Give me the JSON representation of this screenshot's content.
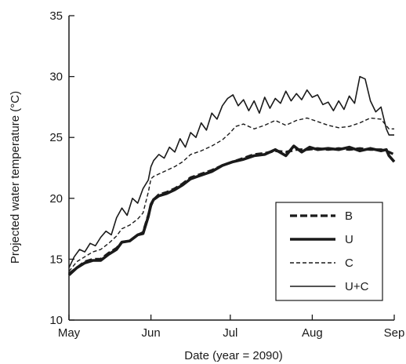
{
  "chart_data": {
    "type": "line",
    "title": "",
    "xlabel": "Date (year = 2090)",
    "ylabel": "Projected water temperature (°C)",
    "ylim": [
      10,
      35
    ],
    "yticks": [
      10,
      15,
      20,
      25,
      30,
      35
    ],
    "xlim": [
      0,
      123
    ],
    "xticks": [
      {
        "label": "May",
        "day": 0
      },
      {
        "label": "Jun",
        "day": 31
      },
      {
        "label": "Jul",
        "day": 61
      },
      {
        "label": "Aug",
        "day": 92
      },
      {
        "label": "Sep",
        "day": 123
      }
    ],
    "grid": false,
    "legend_position": "lower-right",
    "series": [
      {
        "name": "B",
        "style": "dashed-thick",
        "points": [
          [
            0,
            13.8
          ],
          [
            3,
            14.3
          ],
          [
            6,
            14.8
          ],
          [
            9,
            15.0
          ],
          [
            12,
            15.0
          ],
          [
            15,
            15.5
          ],
          [
            18,
            15.9
          ],
          [
            20,
            16.4
          ],
          [
            23,
            16.5
          ],
          [
            26,
            17.0
          ],
          [
            28,
            17.2
          ],
          [
            30,
            18.6
          ],
          [
            31,
            19.4
          ],
          [
            32,
            19.9
          ],
          [
            34,
            20.3
          ],
          [
            37,
            20.5
          ],
          [
            40,
            20.8
          ],
          [
            43,
            21.2
          ],
          [
            46,
            21.7
          ],
          [
            50,
            22.0
          ],
          [
            54,
            22.3
          ],
          [
            58,
            22.7
          ],
          [
            62,
            23.0
          ],
          [
            66,
            23.3
          ],
          [
            70,
            23.6
          ],
          [
            74,
            23.7
          ],
          [
            78,
            23.9
          ],
          [
            82,
            23.8
          ],
          [
            86,
            24.0
          ],
          [
            90,
            24.0
          ],
          [
            94,
            24.1
          ],
          [
            98,
            24.0
          ],
          [
            102,
            24.1
          ],
          [
            106,
            24.0
          ],
          [
            110,
            24.1
          ],
          [
            114,
            24.0
          ],
          [
            118,
            24.0
          ],
          [
            121,
            23.8
          ],
          [
            123,
            23.6
          ]
        ]
      },
      {
        "name": "U",
        "style": "solid-thick",
        "points": [
          [
            0,
            13.7
          ],
          [
            3,
            14.3
          ],
          [
            6,
            14.7
          ],
          [
            9,
            14.9
          ],
          [
            12,
            14.9
          ],
          [
            15,
            15.4
          ],
          [
            18,
            15.8
          ],
          [
            20,
            16.4
          ],
          [
            23,
            16.5
          ],
          [
            26,
            17.0
          ],
          [
            28,
            17.1
          ],
          [
            30,
            18.5
          ],
          [
            31,
            19.5
          ],
          [
            32,
            19.9
          ],
          [
            34,
            20.2
          ],
          [
            37,
            20.4
          ],
          [
            40,
            20.7
          ],
          [
            43,
            21.1
          ],
          [
            46,
            21.6
          ],
          [
            50,
            21.9
          ],
          [
            54,
            22.2
          ],
          [
            58,
            22.7
          ],
          [
            62,
            23.0
          ],
          [
            66,
            23.2
          ],
          [
            70,
            23.5
          ],
          [
            74,
            23.6
          ],
          [
            78,
            24.0
          ],
          [
            82,
            23.5
          ],
          [
            85,
            24.3
          ],
          [
            88,
            23.8
          ],
          [
            91,
            24.2
          ],
          [
            94,
            24.0
          ],
          [
            98,
            24.1
          ],
          [
            102,
            24.0
          ],
          [
            106,
            24.2
          ],
          [
            110,
            23.9
          ],
          [
            114,
            24.1
          ],
          [
            118,
            23.9
          ],
          [
            120,
            24.0
          ],
          [
            121,
            23.5
          ],
          [
            123,
            23.0
          ]
        ]
      },
      {
        "name": "C",
        "style": "dashed-thin",
        "points": [
          [
            0,
            14.0
          ],
          [
            3,
            14.8
          ],
          [
            6,
            15.2
          ],
          [
            9,
            15.6
          ],
          [
            12,
            15.8
          ],
          [
            15,
            16.3
          ],
          [
            18,
            16.9
          ],
          [
            20,
            17.5
          ],
          [
            23,
            17.8
          ],
          [
            26,
            18.3
          ],
          [
            28,
            18.8
          ],
          [
            30,
            20.5
          ],
          [
            31,
            21.6
          ],
          [
            32,
            21.8
          ],
          [
            34,
            22.0
          ],
          [
            37,
            22.3
          ],
          [
            40,
            22.6
          ],
          [
            43,
            23.0
          ],
          [
            46,
            23.6
          ],
          [
            50,
            23.9
          ],
          [
            54,
            24.3
          ],
          [
            58,
            24.8
          ],
          [
            61,
            25.4
          ],
          [
            63,
            25.9
          ],
          [
            66,
            26.1
          ],
          [
            70,
            25.7
          ],
          [
            74,
            26.0
          ],
          [
            78,
            26.4
          ],
          [
            82,
            26.0
          ],
          [
            86,
            26.4
          ],
          [
            90,
            26.6
          ],
          [
            94,
            26.3
          ],
          [
            98,
            26.0
          ],
          [
            102,
            25.8
          ],
          [
            106,
            25.9
          ],
          [
            110,
            26.2
          ],
          [
            114,
            26.6
          ],
          [
            118,
            26.5
          ],
          [
            121,
            25.7
          ],
          [
            123,
            25.7
          ]
        ]
      },
      {
        "name": "U+C",
        "style": "solid-thin",
        "points": [
          [
            0,
            14.3
          ],
          [
            2,
            15.2
          ],
          [
            4,
            15.8
          ],
          [
            6,
            15.6
          ],
          [
            8,
            16.3
          ],
          [
            10,
            16.1
          ],
          [
            12,
            16.8
          ],
          [
            14,
            17.3
          ],
          [
            16,
            17.0
          ],
          [
            18,
            18.4
          ],
          [
            20,
            19.2
          ],
          [
            22,
            18.6
          ],
          [
            24,
            20.0
          ],
          [
            26,
            19.6
          ],
          [
            28,
            20.8
          ],
          [
            30,
            21.5
          ],
          [
            31,
            22.6
          ],
          [
            32,
            23.1
          ],
          [
            34,
            23.6
          ],
          [
            36,
            23.3
          ],
          [
            38,
            24.2
          ],
          [
            40,
            23.8
          ],
          [
            42,
            24.9
          ],
          [
            44,
            24.2
          ],
          [
            46,
            25.4
          ],
          [
            48,
            25.0
          ],
          [
            50,
            26.2
          ],
          [
            52,
            25.6
          ],
          [
            54,
            27.0
          ],
          [
            56,
            26.5
          ],
          [
            58,
            27.6
          ],
          [
            60,
            28.2
          ],
          [
            62,
            28.5
          ],
          [
            64,
            27.6
          ],
          [
            66,
            28.1
          ],
          [
            68,
            27.2
          ],
          [
            70,
            28.0
          ],
          [
            72,
            27.0
          ],
          [
            74,
            28.3
          ],
          [
            76,
            27.4
          ],
          [
            78,
            28.2
          ],
          [
            80,
            27.8
          ],
          [
            82,
            28.8
          ],
          [
            84,
            28.0
          ],
          [
            86,
            28.6
          ],
          [
            88,
            28.1
          ],
          [
            90,
            28.9
          ],
          [
            92,
            28.3
          ],
          [
            94,
            28.5
          ],
          [
            96,
            27.7
          ],
          [
            98,
            27.9
          ],
          [
            100,
            27.2
          ],
          [
            102,
            28.0
          ],
          [
            104,
            27.3
          ],
          [
            106,
            28.4
          ],
          [
            108,
            27.8
          ],
          [
            110,
            30.0
          ],
          [
            112,
            29.8
          ],
          [
            114,
            28.0
          ],
          [
            116,
            27.1
          ],
          [
            118,
            27.5
          ],
          [
            120,
            25.7
          ],
          [
            121,
            25.2
          ],
          [
            123,
            25.2
          ]
        ]
      }
    ]
  }
}
